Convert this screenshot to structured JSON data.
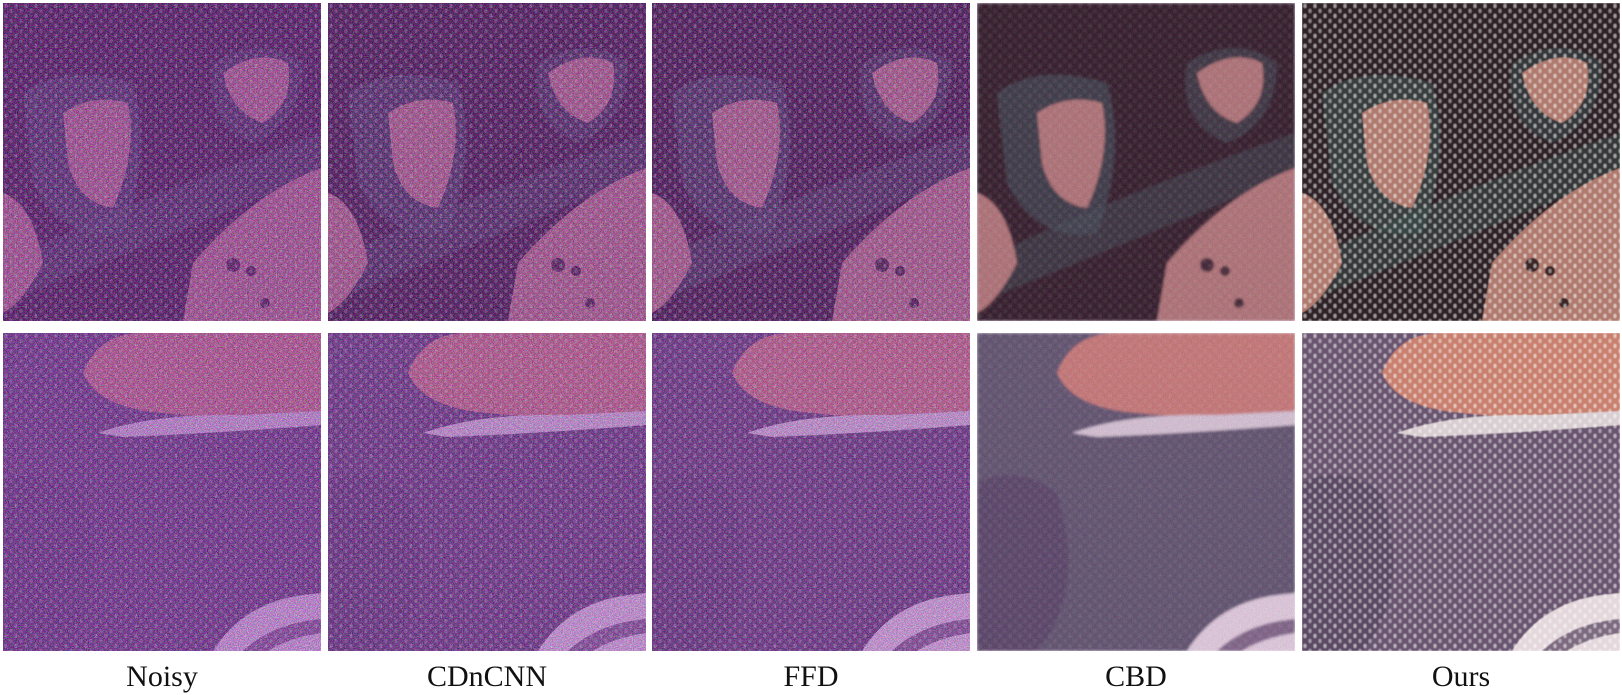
{
  "columns": [
    {
      "label": "Noisy"
    },
    {
      "label": "CDnCNN"
    },
    {
      "label": "FFD"
    },
    {
      "label": "CBD"
    },
    {
      "label": "Ours"
    }
  ],
  "rows": [
    {
      "scene": "dark-fabric-with-rose-dots"
    },
    {
      "scene": "purple-fabric-with-salmon-patch"
    }
  ],
  "colors": {
    "dark_bg": "#2a1d22",
    "dark_teal_grain": "#3a4a48",
    "rose_patch": "#b07a6e",
    "rose_patch_bright": "#c98a76",
    "purple_bg": "#5a4864",
    "salmon_patch": "#c9806e",
    "white_band": "#d9cfd2",
    "noise_magenta": "#b04a8a",
    "noise_green": "#3e7a55"
  }
}
